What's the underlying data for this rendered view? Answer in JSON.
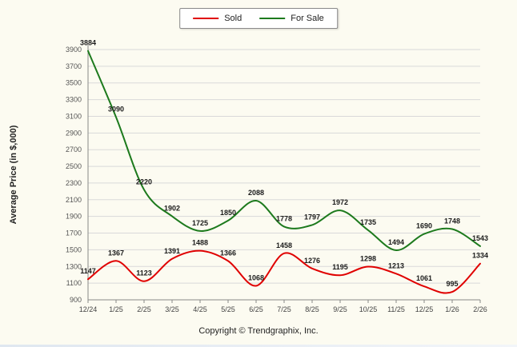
{
  "chart_data": {
    "type": "line",
    "title": "",
    "categories": [
      "12/24",
      "1/25",
      "2/25",
      "3/25",
      "4/25",
      "5/25",
      "6/25",
      "7/25",
      "8/25",
      "9/25",
      "10/25",
      "11/25",
      "12/25",
      "1/26",
      "2/26"
    ],
    "series": [
      {
        "name": "Sold",
        "color": "#e00000",
        "values": [
          1147,
          1367,
          1123,
          1391,
          1488,
          1366,
          1068,
          1458,
          1276,
          1195,
          1298,
          1213,
          1061,
          995,
          1334
        ]
      },
      {
        "name": "For Sale",
        "color": "#1d7a1d",
        "values": [
          3884,
          3090,
          2220,
          1902,
          1725,
          1850,
          2088,
          1778,
          1797,
          1972,
          1735,
          1494,
          1690,
          1748,
          1543
        ]
      }
    ],
    "xlabel": "",
    "ylabel": "Average Price (in $,000)",
    "ylim": [
      900,
      3900
    ],
    "yticks": [
      900,
      1100,
      1300,
      1500,
      1700,
      1900,
      2100,
      2300,
      2500,
      2700,
      2900,
      3100,
      3300,
      3500,
      3700,
      3900
    ],
    "grid": true,
    "legend_position": "top"
  },
  "footer": {
    "copyright": "Copyright © Trendgraphix, Inc."
  },
  "colors": {
    "background": "#fcfbf1",
    "grid": "#d9d9d9",
    "axis": "#888888",
    "tick_text": "#555555",
    "label_text": "#1a1a1a"
  }
}
